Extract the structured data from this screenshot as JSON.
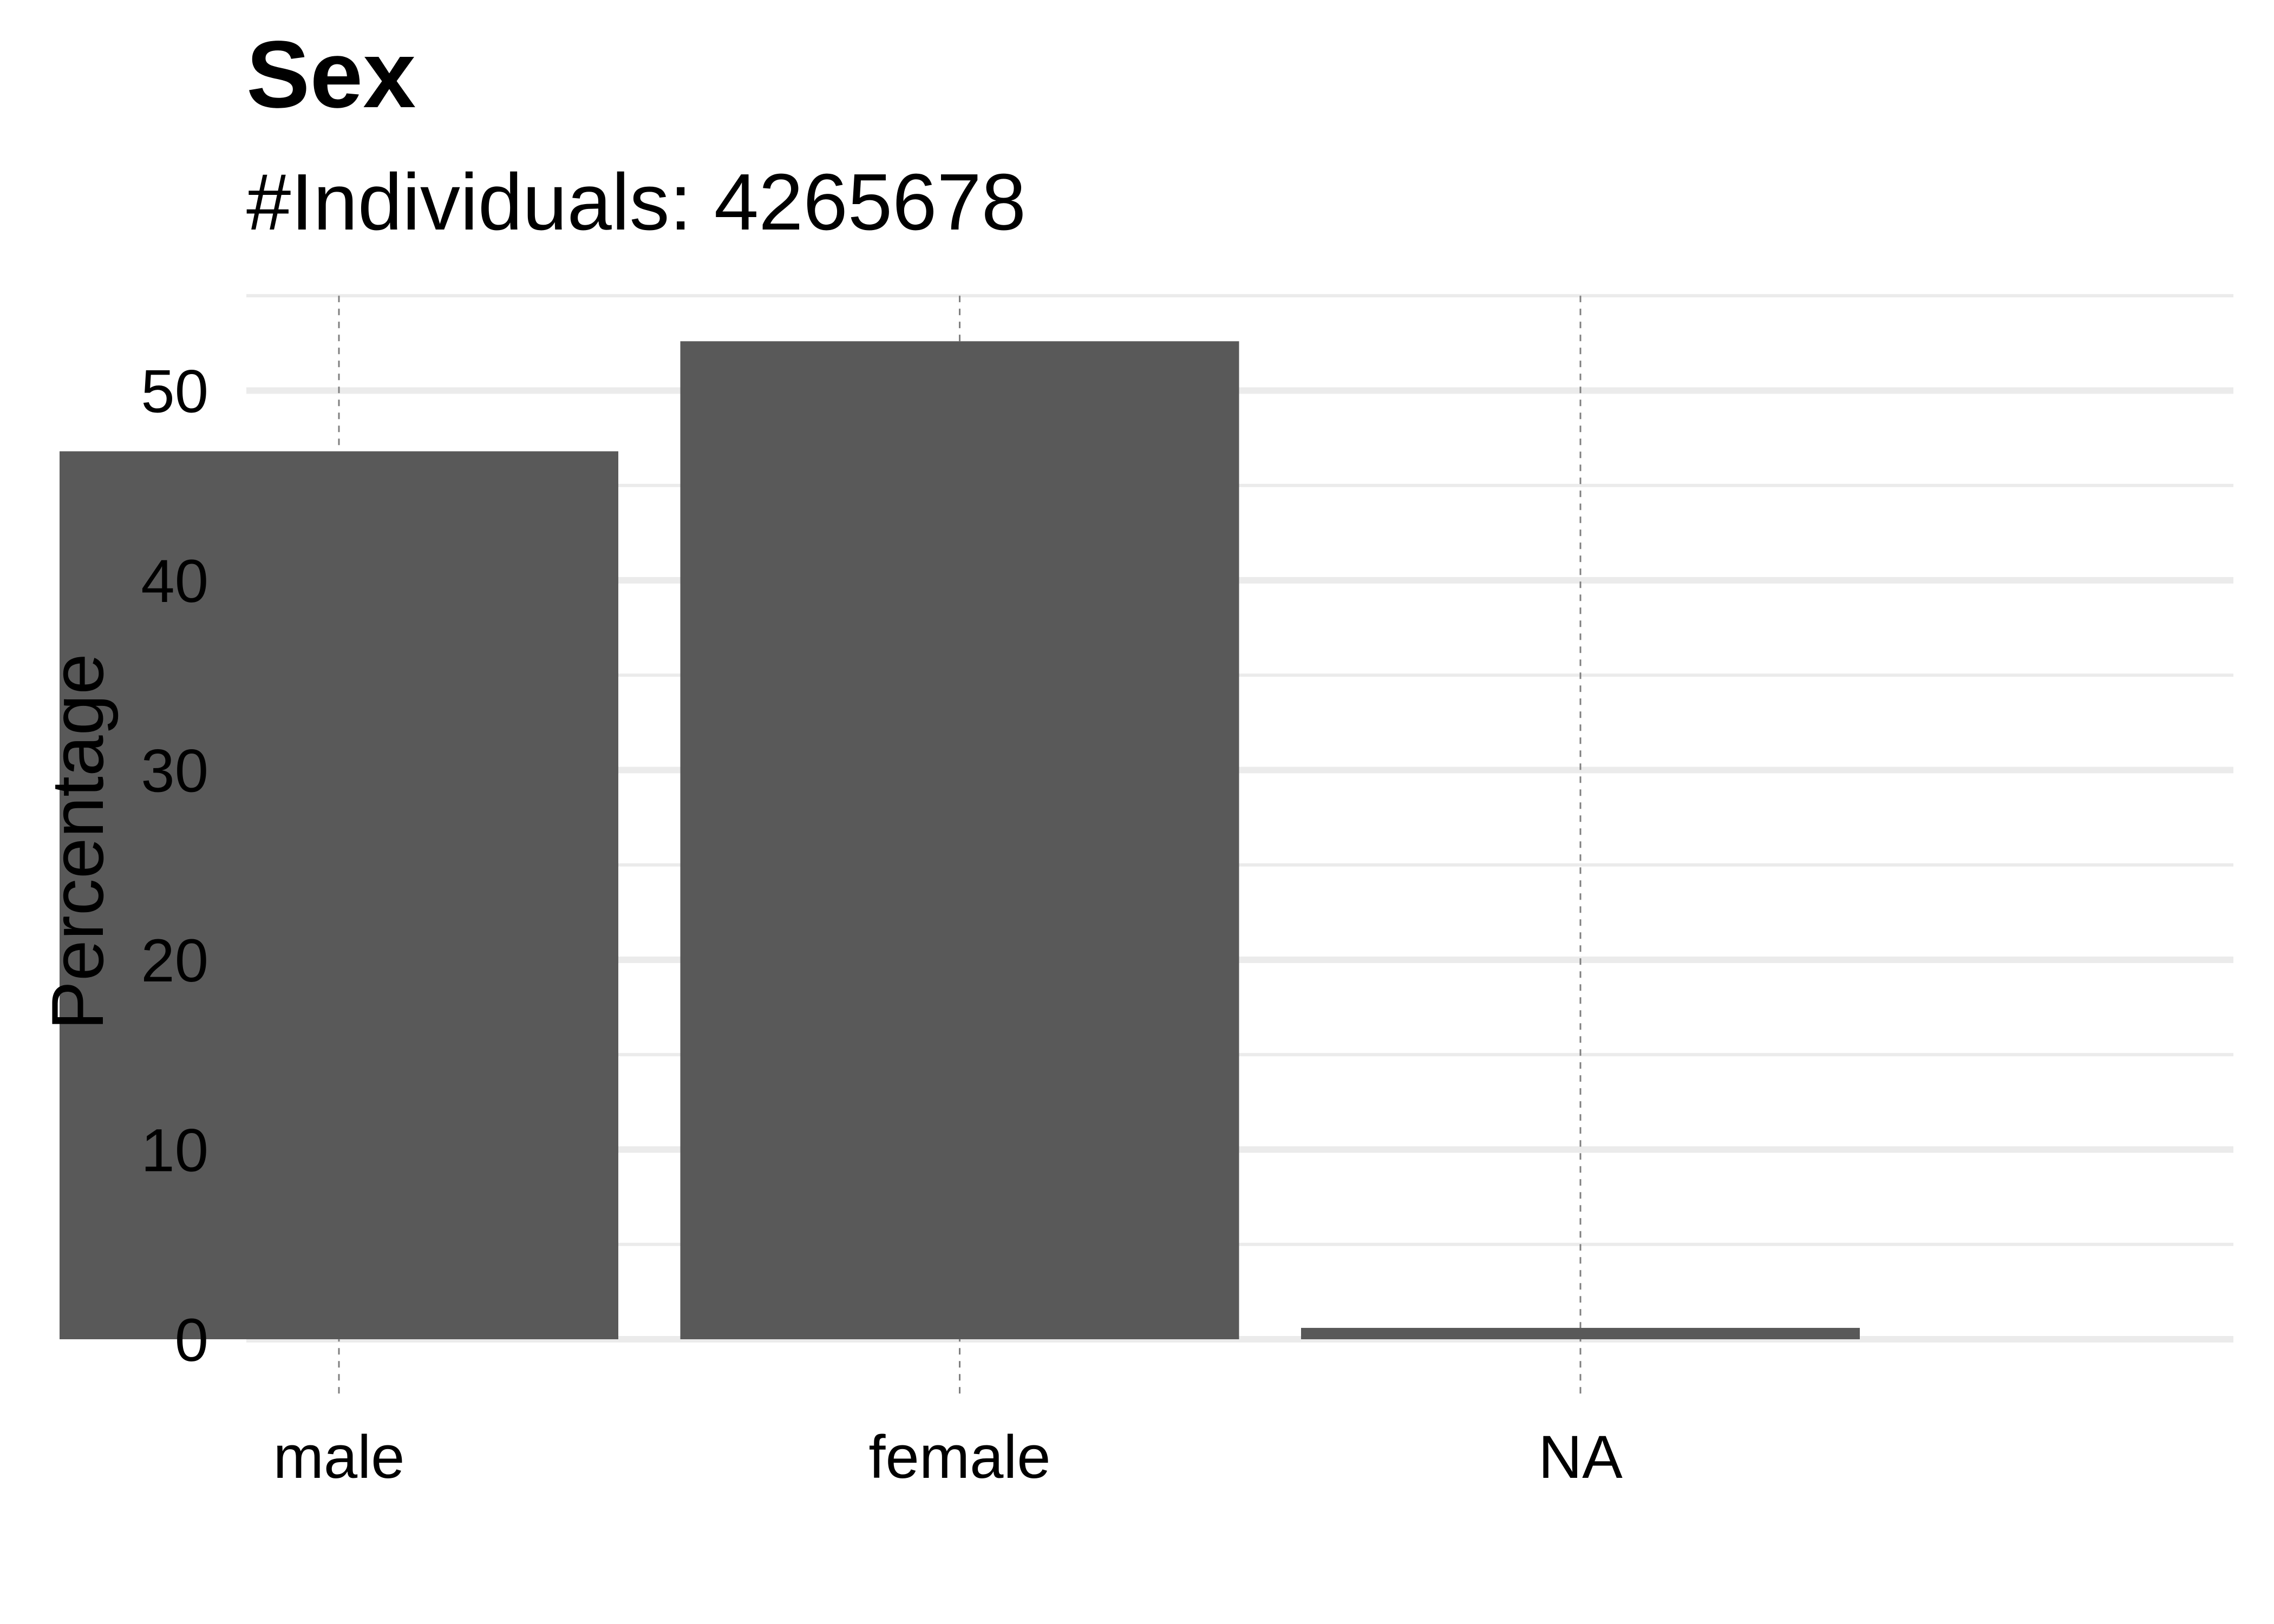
{
  "chart_data": {
    "type": "bar",
    "title": "Sex",
    "subtitle": "#Individuals: 4265678",
    "xlabel": "",
    "ylabel": "Percentage",
    "categories": [
      "male",
      "female",
      "NA"
    ],
    "values": [
      46.8,
      52.6,
      0.6
    ],
    "ylim": [
      0,
      55
    ],
    "y_ticks": [
      0,
      10,
      20,
      30,
      40,
      50
    ],
    "grid": true,
    "legend": "none",
    "colors": {
      "bar": "#595959",
      "grid_major": "#ebebeb",
      "grid_minor": "#ebebeb",
      "x_gridline": "#7f7f7f"
    }
  }
}
